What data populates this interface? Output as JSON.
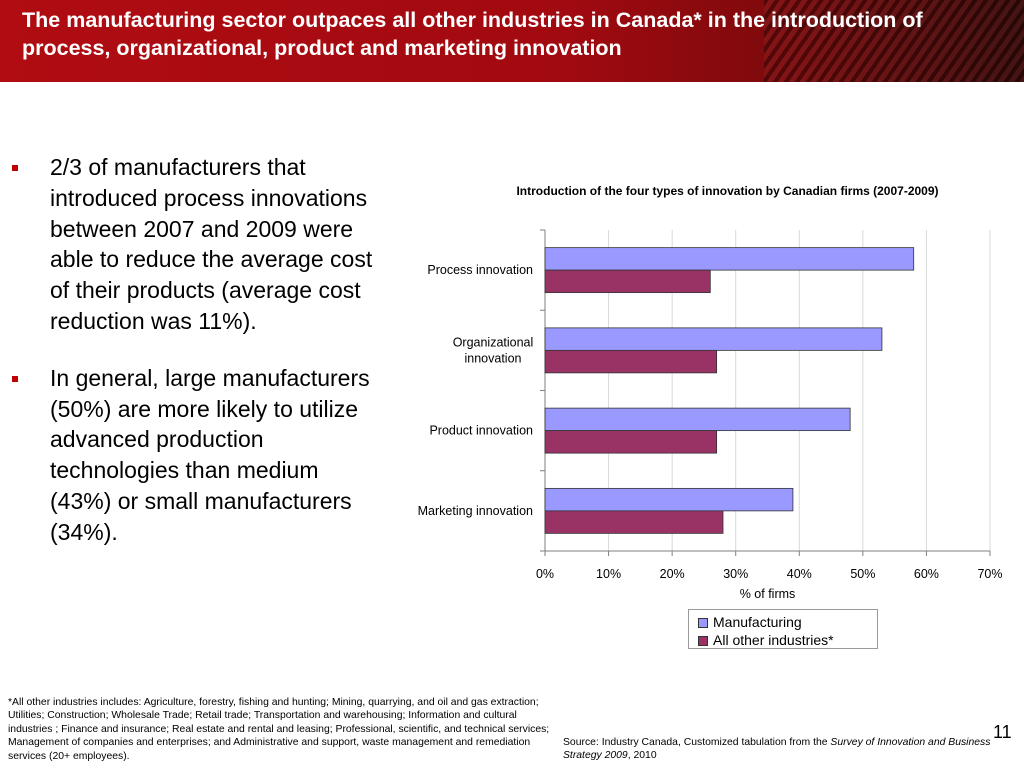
{
  "slide": {
    "title": "The manufacturing sector outpaces all other industries in Canada* in the introduction of process, organizational, product and marketing innovation",
    "bullets": [
      "2/3 of manufacturers that introduced process innovations between 2007 and 2009 were able to reduce the average cost of their products (average cost reduction was 11%).",
      "In general, large manufacturers (50%) are more likely to utilize advanced production technologies than medium (43%) or small manufacturers (34%)."
    ],
    "footnote": "*All other industries includes: Agriculture, forestry, fishing and hunting; Mining, quarrying, and oil and gas extraction; Utilities; Construction; Wholesale Trade; Retail trade; Transportation and warehousing; Information and cultural industries ; Finance and insurance; Real estate and rental and leasing; Professional, scientific, and technical services; Management of companies and enterprises; and Administrative and support, waste management and remediation services (20+ employees).",
    "source": {
      "prefix": "Source: Industry Canada, Customized tabulation from the ",
      "italic": "Survey of Innovation and Business Strategy 2009",
      "suffix": ", 2010"
    },
    "page_number": "11"
  },
  "chart_data": {
    "type": "bar",
    "orientation": "horizontal",
    "title": "Introduction of the four types of innovation by Canadian firms (2007-2009)",
    "categories": [
      [
        "Process innovation"
      ],
      [
        "Organizational",
        "innovation"
      ],
      [
        "Product innovation"
      ],
      [
        "Marketing innovation"
      ]
    ],
    "series": [
      {
        "name": "Manufacturing",
        "values": [
          58,
          53,
          48,
          39
        ],
        "color": "#9999ff"
      },
      {
        "name": "All other industries*",
        "values": [
          26,
          27,
          27,
          28
        ],
        "color": "#993366"
      }
    ],
    "xlabel": "% of firms",
    "xlim": [
      0,
      70
    ],
    "xticks": [
      0,
      10,
      20,
      30,
      40,
      50,
      60,
      70
    ],
    "tick_format": "{v}%",
    "grid": true,
    "legend": "bottom-right"
  }
}
